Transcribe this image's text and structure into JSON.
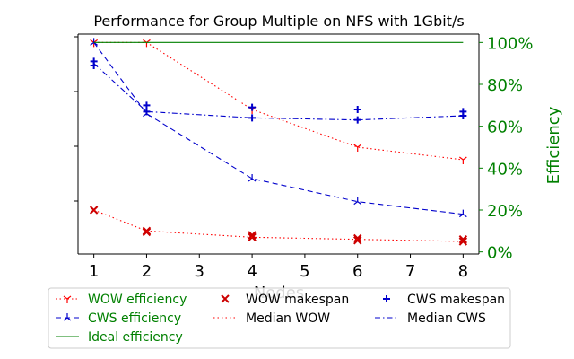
{
  "chart_data": {
    "type": "line",
    "title": "Performance for Group Multiple on NFS with 1Gbit/s",
    "xlabel": "Nodes",
    "ylabel_right": "Efficiency",
    "x_ticks": [
      1,
      2,
      3,
      4,
      5,
      6,
      7,
      8
    ],
    "x": [
      1,
      2,
      4,
      6,
      8
    ],
    "xlim": [
      0.7,
      8.3
    ],
    "y_right_ticks": [
      "0%",
      "20%",
      "40%",
      "60%",
      "80%",
      "100%"
    ],
    "y_right_lim": [
      -0.01,
      1.04
    ],
    "y_left_tick_count": 4,
    "legend_position": "bottom-outside",
    "series": [
      {
        "name": "WOW efficiency",
        "axis": "right",
        "style": "dotted",
        "marker": "tri_down",
        "color": "#ff0000",
        "values": [
          1.0,
          1.0,
          0.68,
          0.5,
          0.44
        ]
      },
      {
        "name": "CWS efficiency",
        "axis": "right",
        "style": "dashed",
        "marker": "tri_up",
        "color": "#0000cc",
        "values": [
          1.0,
          0.66,
          0.35,
          0.24,
          0.18
        ]
      },
      {
        "name": "Ideal efficiency",
        "axis": "right",
        "style": "solid",
        "marker": "none",
        "color": "#008000",
        "values": [
          1.0,
          1.0,
          1.0,
          1.0,
          1.0
        ]
      },
      {
        "name": "WOW makespan",
        "axis": "right",
        "style": "none",
        "marker": "x",
        "color": "#cc0000",
        "points": [
          [
            1,
            0.2
          ],
          [
            2,
            0.1
          ],
          [
            2,
            0.095
          ],
          [
            4,
            0.08
          ],
          [
            4,
            0.07
          ],
          [
            6,
            0.065
          ],
          [
            6,
            0.055
          ],
          [
            8,
            0.06
          ],
          [
            8,
            0.05
          ]
        ]
      },
      {
        "name": "Median WOW",
        "axis": "right",
        "style": "dotted",
        "marker": "none",
        "color": "#ff0000",
        "values": [
          0.2,
          0.1,
          0.07,
          0.06,
          0.05
        ]
      },
      {
        "name": "CWS makespan",
        "axis": "right",
        "style": "none",
        "marker": "plus",
        "color": "#0000cc",
        "points": [
          [
            1,
            0.91
          ],
          [
            1,
            0.89
          ],
          [
            2,
            0.7
          ],
          [
            2,
            0.67
          ],
          [
            4,
            0.69
          ],
          [
            4,
            0.64
          ],
          [
            6,
            0.68
          ],
          [
            6,
            0.63
          ],
          [
            8,
            0.67
          ],
          [
            8,
            0.65
          ]
        ]
      },
      {
        "name": "Median CWS",
        "axis": "right",
        "style": "dashdot",
        "marker": "none",
        "color": "#0000cc",
        "values": [
          0.9,
          0.67,
          0.64,
          0.63,
          0.65
        ]
      }
    ],
    "legend_entries": [
      {
        "label": "WOW efficiency",
        "color": "#008000"
      },
      {
        "label": "CWS efficiency",
        "color": "#008000"
      },
      {
        "label": "Ideal efficiency",
        "color": "#008000"
      },
      {
        "label": "WOW makespan",
        "color": "#000000"
      },
      {
        "label": "Median WOW",
        "color": "#000000"
      },
      {
        "label": "CWS makespan",
        "color": "#000000"
      },
      {
        "label": "Median CWS",
        "color": "#000000"
      }
    ]
  }
}
